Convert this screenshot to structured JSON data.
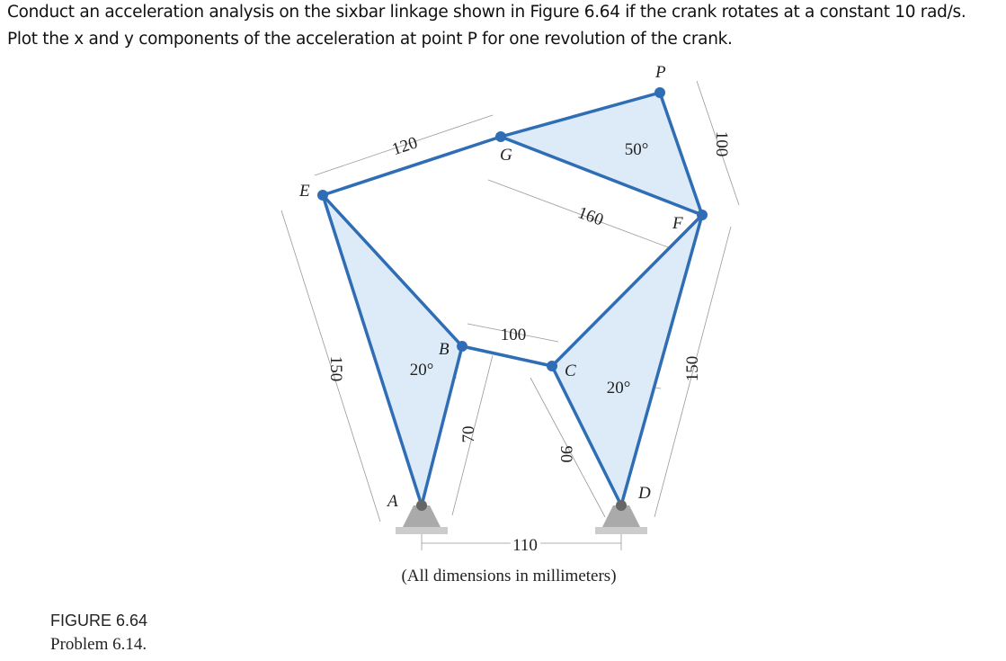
{
  "problem": {
    "lines": [
      "Conduct an acceleration analysis on the sixbar linkage shown in Figure 6.64 if the crank rotates at a constant 10 rad/s.",
      "Plot the x and y components of the acceleration at point P for one revolution of the crank."
    ]
  },
  "figure": {
    "points": {
      "P": "P",
      "G": "G",
      "E": "E",
      "F": "F",
      "B": "B",
      "C": "C",
      "A": "A",
      "D": "D"
    },
    "dimensions": {
      "EG": 120,
      "GF": 160,
      "angle_P": "50°",
      "PF": 100,
      "EA": 150,
      "FD": 150,
      "BC": 100,
      "AB": 70,
      "CD": 90,
      "angle_A": "20°",
      "angle_D": "20°",
      "AD": 110
    },
    "note": "(All dimensions in millimeters)"
  },
  "caption": {
    "label": "FIGURE 6.64",
    "problem": "Problem 6.14."
  }
}
